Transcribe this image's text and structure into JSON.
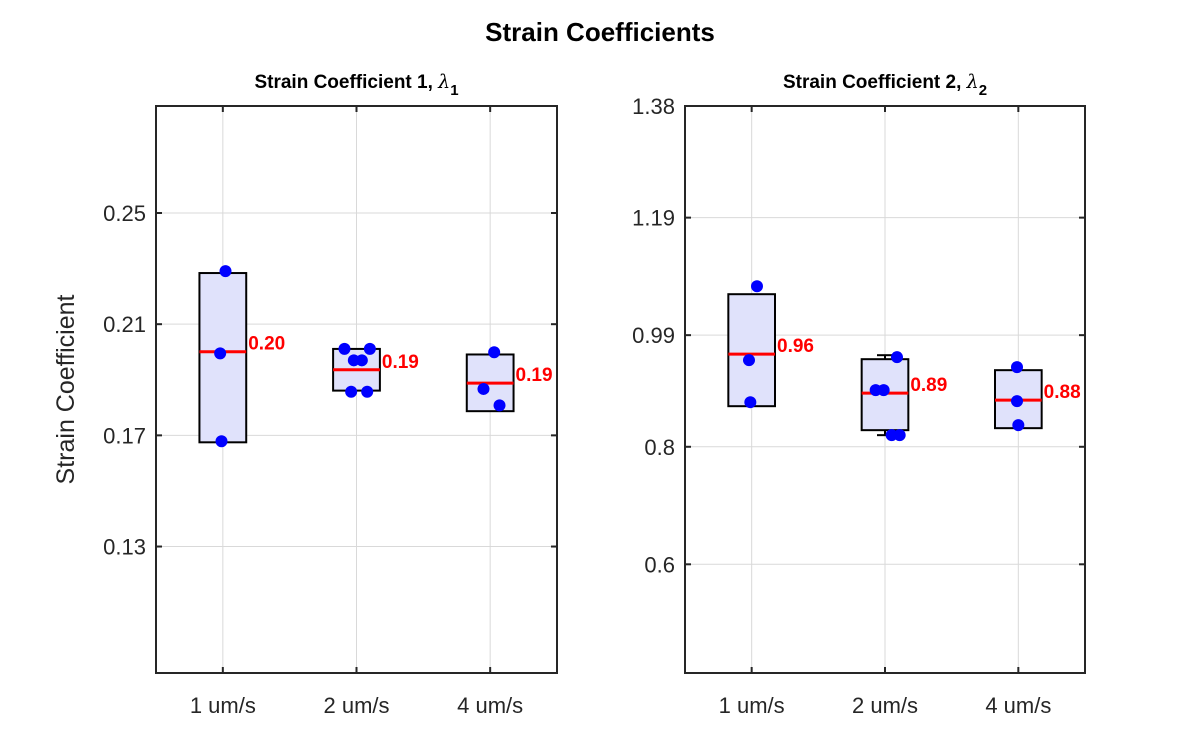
{
  "figure": {
    "title": "Strain Coefficients",
    "colors": {
      "box_fill": "#e0e2fb",
      "box_edge": "#000000",
      "median": "#ff0000",
      "points": "#0000ff",
      "grid": "#d9d9d9"
    }
  },
  "chart_data": [
    {
      "type": "box",
      "title": "Strain Coefficient 1, ",
      "title_symbol": "λ",
      "title_subscript": "1",
      "xlabel": "",
      "ylabel": "Strain Coefficient",
      "categories": [
        "1 um/s",
        "2 um/s",
        "4 um/s"
      ],
      "ylim": [
        0.0845,
        0.2885
      ],
      "yticks": [
        0.13,
        0.17,
        0.21,
        0.25
      ],
      "ytick_labels": [
        "0.13",
        "0.17",
        "0.21",
        "0.25"
      ],
      "grid": true,
      "boxes": [
        {
          "category": "1 um/s",
          "q1": 0.1675,
          "q3": 0.2284,
          "median": 0.2001,
          "whisker_low": 0.1675,
          "whisker_high": 0.2284,
          "median_label": "0.20"
        },
        {
          "category": "2 um/s",
          "q1": 0.1861,
          "q3": 0.2011,
          "median": 0.1936,
          "whisker_low": 0.1861,
          "whisker_high": 0.2011,
          "median_label": "0.19"
        },
        {
          "category": "4 um/s",
          "q1": 0.1787,
          "q3": 0.1991,
          "median": 0.1888,
          "whisker_low": 0.1787,
          "whisker_high": 0.1991,
          "median_label": "0.19"
        }
      ],
      "points": [
        {
          "x": 1.02,
          "y": 0.2291
        },
        {
          "x": 0.98,
          "y": 0.1995
        },
        {
          "x": 0.99,
          "y": 0.1679
        },
        {
          "x": 1.91,
          "y": 0.2011
        },
        {
          "x": 1.98,
          "y": 0.197
        },
        {
          "x": 2.04,
          "y": 0.197
        },
        {
          "x": 2.1,
          "y": 0.2011
        },
        {
          "x": 1.96,
          "y": 0.1857
        },
        {
          "x": 2.08,
          "y": 0.1857
        },
        {
          "x": 3.03,
          "y": 0.1999
        },
        {
          "x": 2.95,
          "y": 0.1867
        },
        {
          "x": 3.07,
          "y": 0.1808
        }
      ]
    },
    {
      "type": "box",
      "title": "Strain Coefficient 2, ",
      "title_symbol": "λ",
      "title_subscript": "2",
      "xlabel": "",
      "ylabel": "",
      "categories": [
        "1 um/s",
        "2 um/s",
        "4 um/s"
      ],
      "ylim": [
        0.415,
        1.38
      ],
      "yticks": [
        0.6,
        0.8,
        0.99,
        1.19,
        1.38
      ],
      "ytick_labels": [
        "0.6",
        "0.8",
        "0.99",
        "1.19",
        "1.38"
      ],
      "grid": true,
      "boxes": [
        {
          "category": "1 um/s",
          "q1": 0.8691,
          "q3": 1.0597,
          "median": 0.9576,
          "whisker_low": 0.8691,
          "whisker_high": 1.0597,
          "median_label": "0.96"
        },
        {
          "category": "2 um/s",
          "q1": 0.8283,
          "q3": 0.9491,
          "median": 0.8913,
          "whisker_low": 0.8198,
          "whisker_high": 0.9559,
          "median_label": "0.89"
        },
        {
          "category": "4 um/s",
          "q1": 0.8317,
          "q3": 0.9304,
          "median": 0.8794,
          "whisker_low": 0.8317,
          "whisker_high": 0.9304,
          "median_label": "0.88"
        }
      ],
      "points": [
        {
          "x": 1.04,
          "y": 1.0733
        },
        {
          "x": 0.98,
          "y": 0.9474
        },
        {
          "x": 0.99,
          "y": 0.8759
        },
        {
          "x": 1.93,
          "y": 0.8964
        },
        {
          "x": 1.99,
          "y": 0.8964
        },
        {
          "x": 2.09,
          "y": 0.9525
        },
        {
          "x": 2.05,
          "y": 0.8198
        },
        {
          "x": 2.11,
          "y": 0.8198
        },
        {
          "x": 2.99,
          "y": 0.9355
        },
        {
          "x": 2.99,
          "y": 0.8777
        },
        {
          "x": 3.0,
          "y": 0.8368
        }
      ]
    }
  ]
}
